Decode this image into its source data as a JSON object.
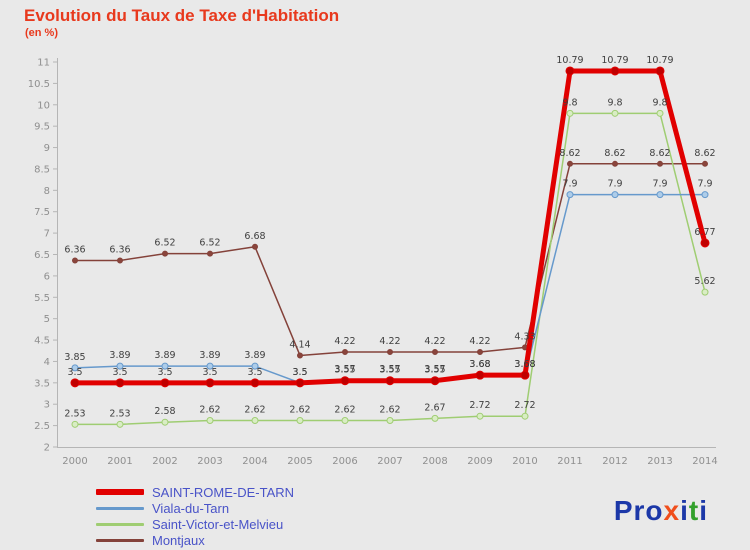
{
  "title": "Evolution du Taux de Taxe d'Habitation",
  "subtitle": "(en %)",
  "title_color": "#e8391d",
  "chart_data": {
    "type": "line",
    "title": "Evolution du Taux de Taxe d'Habitation",
    "subtitle_note": "(en %)",
    "x": [
      2000,
      2001,
      2002,
      2003,
      2004,
      2005,
      2006,
      2007,
      2008,
      2009,
      2010,
      2011,
      2012,
      2013,
      2014
    ],
    "series": [
      {
        "name": "SAINT-ROME-DE-TARN",
        "color": "#e10000",
        "width": 5,
        "marker_r": 4,
        "marker_fill": "#c00000",
        "values": [
          3.5,
          3.5,
          3.5,
          3.5,
          3.5,
          3.5,
          3.55,
          3.55,
          3.55,
          3.68,
          3.68,
          10.79,
          10.79,
          10.79,
          6.77
        ]
      },
      {
        "name": "Viala-du-Tarn",
        "color": "#6699cc",
        "width": 1.5,
        "marker_r": 3,
        "marker_fill": "#aecde9",
        "values": [
          3.85,
          3.89,
          3.89,
          3.89,
          3.89,
          3.5,
          3.57,
          3.57,
          3.57,
          3.68,
          3.68,
          7.9,
          7.9,
          7.9,
          7.9
        ]
      },
      {
        "name": "Saint-Victor-et-Melvieu",
        "color": "#9fcd72",
        "width": 1.5,
        "marker_r": 3,
        "marker_fill": "#d9edc4",
        "values": [
          2.53,
          2.53,
          2.58,
          2.62,
          2.62,
          2.62,
          2.62,
          2.62,
          2.67,
          2.72,
          2.72,
          9.8,
          9.8,
          9.8,
          5.62
        ]
      },
      {
        "name": "Montjaux",
        "color": "#84423a",
        "width": 1.5,
        "marker_r": 2.5,
        "marker_fill": "#8a453c",
        "values": [
          6.36,
          6.36,
          6.52,
          6.52,
          6.68,
          4.14,
          4.22,
          4.22,
          4.22,
          4.22,
          4.33,
          8.62,
          8.62,
          8.62,
          8.62
        ]
      }
    ],
    "xlabel": "",
    "ylabel": "",
    "ylim": [
      2,
      11
    ],
    "ytick_step": 0.5,
    "grid": false,
    "legend_position": "bottom-left"
  },
  "logo": {
    "letters": [
      {
        "ch": "P",
        "color": "#1c38a8"
      },
      {
        "ch": "r",
        "color": "#1c38a8"
      },
      {
        "ch": "o",
        "color": "#1c38a8"
      },
      {
        "ch": "x",
        "color": "#f04e1c"
      },
      {
        "ch": "i",
        "color": "#1c38a8"
      },
      {
        "ch": "t",
        "color": "#33a02c"
      },
      {
        "ch": "i",
        "color": "#1c38a8"
      }
    ]
  }
}
